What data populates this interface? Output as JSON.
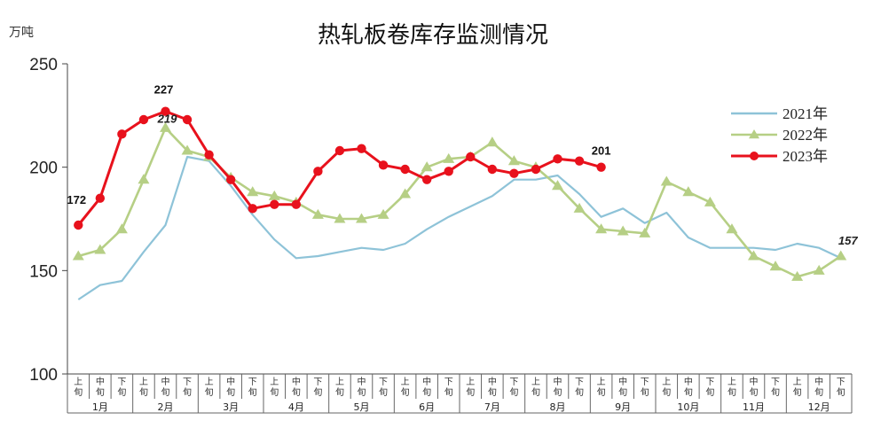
{
  "chart_data": {
    "type": "line",
    "title": "热轧板卷库存监测情况",
    "unit_label": "万吨",
    "ylim": [
      100,
      250
    ],
    "yticks": [
      100,
      150,
      200,
      250
    ],
    "period_labels": [
      "上旬",
      "中旬",
      "下旬"
    ],
    "months": [
      "1月",
      "2月",
      "3月",
      "4月",
      "5月",
      "6月",
      "7月",
      "8月",
      "9月",
      "10月",
      "11月",
      "12月"
    ],
    "series": [
      {
        "name": "2021年",
        "color": "#8ec3d8",
        "marker": "none",
        "values": [
          136,
          143,
          145,
          159,
          172,
          205,
          203,
          191,
          177,
          165,
          156,
          157,
          159,
          161,
          160,
          163,
          170,
          176,
          181,
          186,
          194,
          194,
          196,
          187,
          176,
          180,
          173,
          178,
          166,
          161,
          161,
          161,
          160,
          163,
          161,
          156
        ]
      },
      {
        "name": "2022年",
        "color": "#b6cf85",
        "marker": "triangle",
        "values": [
          157,
          160,
          170,
          194,
          219,
          208,
          205,
          195,
          188,
          186,
          183,
          177,
          175,
          175,
          177,
          187,
          200,
          204,
          205,
          212,
          203,
          200,
          191,
          180,
          170,
          169,
          168,
          193,
          188,
          183,
          170,
          157,
          152,
          147,
          150,
          157
        ]
      },
      {
        "name": "2023年",
        "color": "#e8111c",
        "marker": "circle",
        "values": [
          172,
          185,
          216,
          223,
          227,
          223,
          206,
          194,
          180,
          182,
          182,
          198,
          208,
          209,
          201,
          199,
          194,
          198,
          205,
          199,
          197,
          199,
          204,
          203,
          200
        ]
      }
    ],
    "annotations": [
      {
        "text": "172",
        "series": "2023年",
        "index": 0,
        "style": "bold"
      },
      {
        "text": "227",
        "series": "2023年",
        "index": 4,
        "style": "bold"
      },
      {
        "text": "219",
        "series": "2022年",
        "index": 4,
        "style": "italic"
      },
      {
        "text": "201",
        "series": "2023年",
        "index": 24,
        "style": "bold"
      },
      {
        "text": "157",
        "series": "2022年",
        "index": 35,
        "style": "italic"
      }
    ],
    "legend_position": "top-right",
    "grid": false
  }
}
